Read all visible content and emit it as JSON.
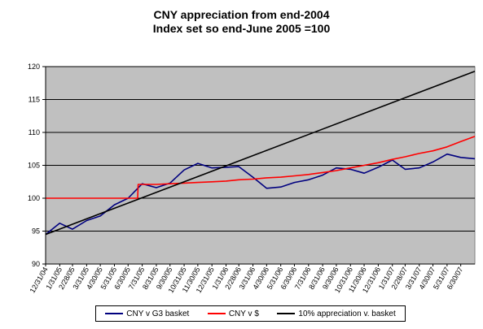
{
  "title_line1": "CNY appreciation from end-2004",
  "title_line2": "Index set so end-June 2005 =100",
  "chart_data": {
    "type": "line",
    "title": "CNY appreciation from end-2004\nIndex set so end-June 2005 =100",
    "xlabel": "",
    "ylabel": "",
    "ylim": [
      90,
      120
    ],
    "y_ticks": [
      90,
      95,
      100,
      105,
      110,
      115,
      120
    ],
    "x_tick_labels": [
      "12/31/04",
      "1/31/05",
      "2/28/05",
      "3/31/05",
      "4/30/05",
      "5/31/05",
      "6/30/05",
      "7/31/05",
      "8/31/05",
      "9/30/05",
      "10/31/05",
      "11/30/05",
      "12/31/05",
      "1/31/06",
      "2/28/06",
      "3/31/06",
      "4/30/06",
      "5/31/06",
      "6/30/06",
      "7/31/06",
      "8/31/06",
      "9/30/06",
      "10/31/06",
      "11/30/06",
      "12/31/06",
      "1/31/07",
      "2/28/07",
      "3/31/07",
      "4/30/07",
      "5/31/07",
      "6/30/07"
    ],
    "grid": true,
    "background": "#c0c0c0",
    "legend_position": "bottom",
    "series": [
      {
        "name": "CNY v G3 basket",
        "color": "#00007f",
        "x": [
          "12/31/04",
          "1/31/05",
          "2/28/05",
          "3/31/05",
          "4/30/05",
          "5/31/05",
          "6/30/05",
          "7/31/05",
          "8/31/05",
          "9/30/05",
          "10/31/05",
          "11/30/05",
          "12/31/05",
          "1/31/06",
          "2/28/06",
          "3/31/06",
          "4/30/06",
          "5/31/06",
          "6/30/06",
          "7/31/06",
          "8/31/06",
          "9/30/06",
          "10/31/06",
          "11/30/06",
          "12/31/06",
          "1/31/07",
          "2/28/07",
          "3/31/07",
          "4/30/07",
          "5/31/07",
          "6/30/07",
          "7/31/07"
        ],
        "values": [
          94.5,
          96.2,
          95.3,
          96.6,
          97.3,
          99.0,
          100.0,
          102.2,
          101.6,
          102.3,
          104.3,
          105.3,
          104.6,
          104.7,
          104.8,
          103.2,
          101.5,
          101.7,
          102.4,
          102.8,
          103.5,
          104.6,
          104.4,
          103.8,
          104.7,
          105.8,
          104.4,
          104.6,
          105.5,
          106.7,
          106.2,
          106.0
        ]
      },
      {
        "name": "CNY v $",
        "color": "#ff0000",
        "x": [
          "12/31/04",
          "1/31/05",
          "2/28/05",
          "3/31/05",
          "4/30/05",
          "5/31/05",
          "6/30/05",
          "7/21/05",
          "7/22/05",
          "8/31/05",
          "9/30/05",
          "10/31/05",
          "11/30/05",
          "12/31/05",
          "1/31/06",
          "2/28/06",
          "3/31/06",
          "4/30/06",
          "5/31/06",
          "6/30/06",
          "7/31/06",
          "8/31/06",
          "9/30/06",
          "10/31/06",
          "11/30/06",
          "12/31/06",
          "1/31/07",
          "2/28/07",
          "3/31/07",
          "4/30/07",
          "5/31/07",
          "6/30/07",
          "7/31/07"
        ],
        "values": [
          100,
          100,
          100,
          100,
          100,
          100,
          100,
          100,
          102.1,
          102.1,
          102.2,
          102.3,
          102.4,
          102.5,
          102.6,
          102.8,
          102.9,
          103.1,
          103.2,
          103.4,
          103.6,
          103.9,
          104.2,
          104.6,
          105.0,
          105.4,
          105.9,
          106.3,
          106.8,
          107.2,
          107.8,
          108.6,
          109.4
        ]
      },
      {
        "name": "10% appreciation v. basket",
        "color": "#000000",
        "x": [
          "12/31/04",
          "7/31/07"
        ],
        "values": [
          94.5,
          119.3
        ]
      }
    ]
  }
}
